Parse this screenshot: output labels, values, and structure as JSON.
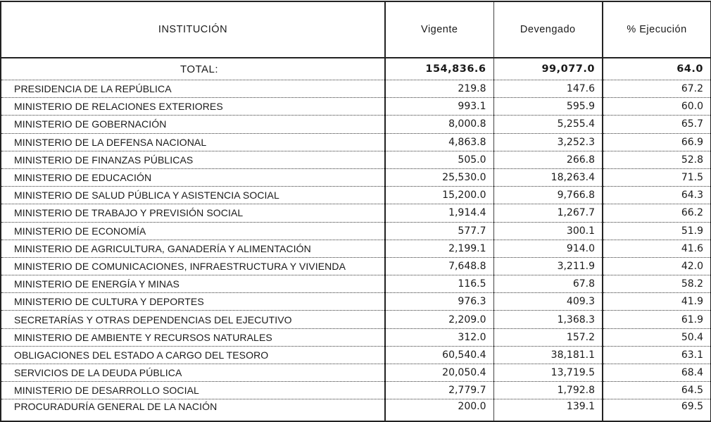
{
  "headers": {
    "institucion": "INSTITUCIÓN",
    "vigente": "Vigente",
    "devengado": "Devengado",
    "ejecucion": "% Ejecución"
  },
  "total": {
    "label": "TOTAL:",
    "vigente": "154,836.6",
    "devengado": "99,077.0",
    "ejecucion": "64.0"
  },
  "rows": [
    {
      "name": "PRESIDENCIA DE LA REPÚBLICA",
      "vigente": "219.8",
      "devengado": "147.6",
      "ejecucion": "67.2"
    },
    {
      "name": "MINISTERIO DE RELACIONES EXTERIORES",
      "vigente": "993.1",
      "devengado": "595.9",
      "ejecucion": "60.0"
    },
    {
      "name": "MINISTERIO DE GOBERNACIÓN",
      "vigente": "8,000.8",
      "devengado": "5,255.4",
      "ejecucion": "65.7"
    },
    {
      "name": "MINISTERIO DE LA DEFENSA NACIONAL",
      "vigente": "4,863.8",
      "devengado": "3,252.3",
      "ejecucion": "66.9"
    },
    {
      "name": "MINISTERIO DE FINANZAS PÚBLICAS",
      "vigente": "505.0",
      "devengado": "266.8",
      "ejecucion": "52.8"
    },
    {
      "name": "MINISTERIO DE EDUCACIÓN",
      "vigente": "25,530.0",
      "devengado": "18,263.4",
      "ejecucion": "71.5"
    },
    {
      "name": "MINISTERIO DE SALUD PÚBLICA Y ASISTENCIA SOCIAL",
      "vigente": "15,200.0",
      "devengado": "9,766.8",
      "ejecucion": "64.3"
    },
    {
      "name": "MINISTERIO DE TRABAJO Y PREVISIÓN SOCIAL",
      "vigente": "1,914.4",
      "devengado": "1,267.7",
      "ejecucion": "66.2"
    },
    {
      "name": "MINISTERIO DE ECONOMÍA",
      "vigente": "577.7",
      "devengado": "300.1",
      "ejecucion": "51.9"
    },
    {
      "name": "MINISTERIO DE AGRICULTURA, GANADERÍA Y ALIMENTACIÓN",
      "vigente": "2,199.1",
      "devengado": "914.0",
      "ejecucion": "41.6"
    },
    {
      "name": "MINISTERIO DE COMUNICACIONES, INFRAESTRUCTURA Y VIVIENDA",
      "vigente": "7,648.8",
      "devengado": "3,211.9",
      "ejecucion": "42.0"
    },
    {
      "name": "MINISTERIO DE ENERGÍA Y MINAS",
      "vigente": "116.5",
      "devengado": "67.8",
      "ejecucion": "58.2"
    },
    {
      "name": "MINISTERIO DE CULTURA Y DEPORTES",
      "vigente": "976.3",
      "devengado": "409.3",
      "ejecucion": "41.9"
    },
    {
      "name": "SECRETARÍAS Y OTRAS  DEPENDENCIAS DEL EJECUTIVO",
      "vigente": "2,209.0",
      "devengado": "1,368.3",
      "ejecucion": "61.9"
    },
    {
      "name": "MINISTERIO DE AMBIENTE Y RECURSOS NATURALES",
      "vigente": "312.0",
      "devengado": "157.2",
      "ejecucion": "50.4"
    },
    {
      "name": "OBLIGACIONES DEL ESTADO A CARGO DEL TESORO",
      "vigente": "60,540.4",
      "devengado": "38,181.1",
      "ejecucion": "63.1"
    },
    {
      "name": "SERVICIOS DE LA DEUDA PÚBLICA",
      "vigente": "20,050.4",
      "devengado": "13,719.5",
      "ejecucion": "68.4"
    },
    {
      "name": "MINISTERIO DE DESARROLLO SOCIAL",
      "vigente": "2,779.7",
      "devengado": "1,792.8",
      "ejecucion": "64.5"
    },
    {
      "name": "PROCURADURÍA GENERAL DE LA NACIÓN",
      "vigente": "200.0",
      "devengado": "139.1",
      "ejecucion": "69.5"
    }
  ]
}
